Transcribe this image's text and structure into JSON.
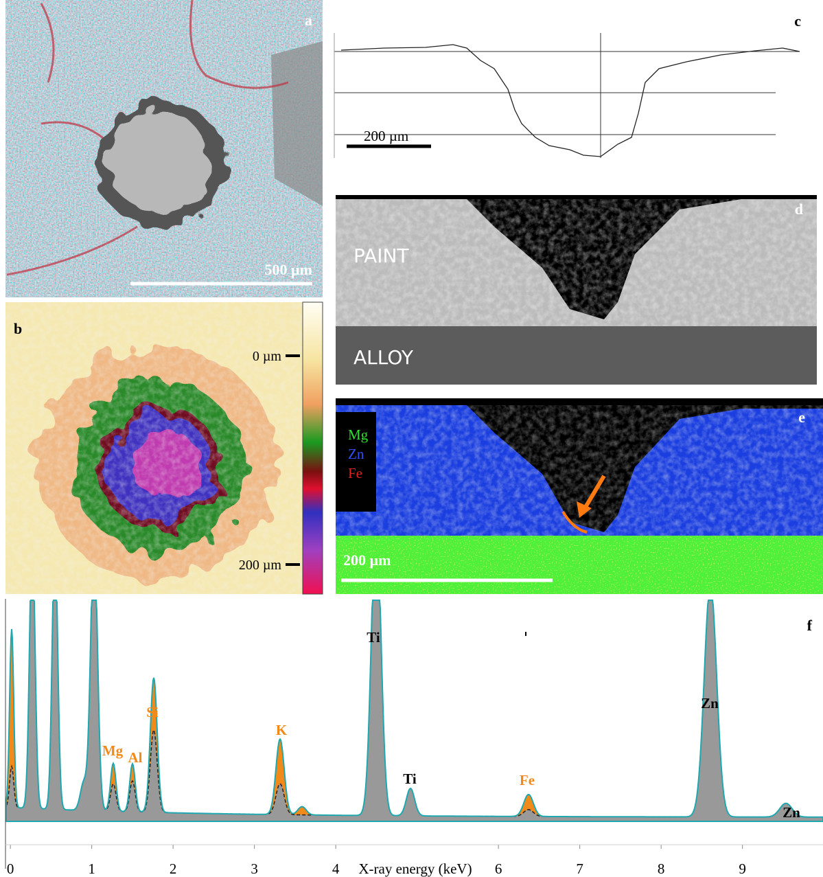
{
  "panels": {
    "a": {
      "label": "a",
      "scale_bar": "500 µm"
    },
    "b": {
      "label": "b",
      "top_tick": "0 µm",
      "bottom_tick": "200 µm"
    },
    "c": {
      "label": "c",
      "scale_bar": "200 µm"
    },
    "d": {
      "label": "d",
      "layers": [
        "PAINT",
        "ALLOY"
      ]
    },
    "e": {
      "label": "e",
      "legend": [
        "Mg",
        "Zn",
        "Fe"
      ],
      "scale_bar": "200 µm"
    },
    "f": {
      "label": "f",
      "peaks": [
        "Si",
        "Mg",
        "Al",
        "K",
        "Fe",
        "Ti",
        "Ti",
        "Zn",
        "Zn"
      ],
      "xlabel": "X-ray energy (keV)",
      "xticks": [
        0,
        1,
        2,
        3,
        4,
        6,
        7,
        8,
        9
      ],
      "xlim": [
        -0.06,
        9.99
      ]
    }
  }
}
